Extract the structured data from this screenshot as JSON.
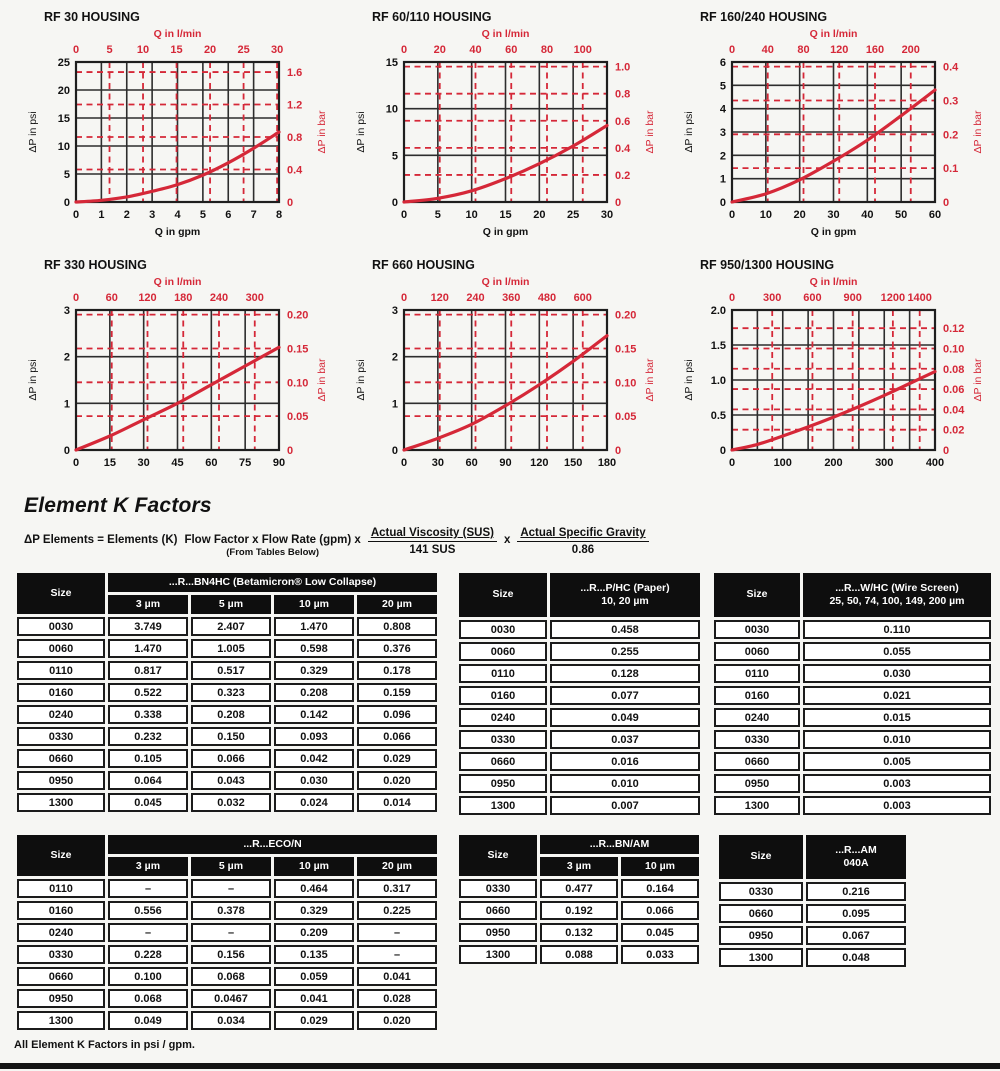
{
  "page": {
    "section_title": "Element K Factors",
    "formula": {
      "lhs": "ΔP Elements = Elements (K)",
      "mid": "Flow Factor x Flow Rate (gpm) x",
      "mid_note": "(From Tables Below)",
      "frac1_num": "Actual Viscosity (SUS)",
      "frac1_den": "141 SUS",
      "times": "x",
      "frac2_num": "Actual Specific Gravity",
      "frac2_den": "0.86"
    },
    "footnote": "All Element K Factors in psi / gpm."
  },
  "colors": {
    "accent_red": "#d52838",
    "line_black": "#2d2d2d",
    "header_bg": "#0e0e0e",
    "cell_bg": "#ffffff"
  },
  "chart_data": [
    {
      "type": "line",
      "title": "RF 30 HOUSING",
      "top_axis_label": "Q in l/min",
      "bottom_axis_label": "Q in gpm",
      "left_axis_label": "ΔP in psi",
      "right_axis_label": "ΔP in bar",
      "xlim": [
        0,
        8
      ],
      "ylim": [
        0,
        25
      ],
      "x_grid": [
        0,
        1,
        2,
        3,
        4,
        5,
        6,
        7,
        8
      ],
      "y_grid": [
        0,
        5,
        10,
        15,
        20,
        25
      ],
      "x_labels": [
        "0",
        "1",
        "2",
        "3",
        "4",
        "5",
        "6",
        "7",
        "8"
      ],
      "y_labels": [
        "0",
        "5",
        "10",
        "15",
        "20",
        "25"
      ],
      "top_lmin_labels": [
        "0",
        "5",
        "10",
        "15",
        "20",
        "25",
        "30"
      ],
      "right_bar_labels": [
        "0",
        "0.4",
        "0.8",
        "1.2",
        "1.6"
      ],
      "curve": {
        "x": [
          0,
          1,
          2,
          3,
          4,
          5,
          6,
          7,
          8
        ],
        "y": [
          0,
          0.3,
          0.9,
          1.9,
          3.1,
          4.8,
          7.0,
          9.6,
          12.5
        ]
      }
    },
    {
      "type": "line",
      "title": "RF 60/110 HOUSING",
      "top_axis_label": "Q in l/min",
      "bottom_axis_label": "Q in gpm",
      "left_axis_label": "ΔP in psi",
      "right_axis_label": "ΔP in bar",
      "xlim": [
        0,
        30
      ],
      "ylim": [
        0,
        15
      ],
      "x_grid": [
        0,
        5,
        10,
        15,
        20,
        25,
        30
      ],
      "y_grid": [
        0,
        5,
        10,
        15
      ],
      "x_labels": [
        "0",
        "5",
        "10",
        "15",
        "20",
        "25",
        "30"
      ],
      "y_labels": [
        "0",
        "5",
        "10",
        "15"
      ],
      "top_lmin_labels": [
        "0",
        "20",
        "40",
        "60",
        "80",
        "100"
      ],
      "right_bar_labels": [
        "0",
        "0.2",
        "0.4",
        "0.6",
        "0.8",
        "1.0"
      ],
      "curve": {
        "x": [
          0,
          5,
          10,
          15,
          20,
          25,
          30
        ],
        "y": [
          0,
          0.4,
          1.2,
          2.5,
          4.1,
          6.0,
          8.2
        ]
      }
    },
    {
      "type": "line",
      "title": "RF 160/240 HOUSING",
      "top_axis_label": "Q in l/min",
      "bottom_axis_label": "Q in gpm",
      "left_axis_label": "ΔP in psi",
      "right_axis_label": "ΔP in bar",
      "xlim": [
        0,
        60
      ],
      "ylim": [
        0,
        6
      ],
      "x_grid": [
        0,
        10,
        20,
        30,
        40,
        50,
        60
      ],
      "y_grid": [
        0,
        1,
        2,
        3,
        4,
        5,
        6
      ],
      "x_labels": [
        "0",
        "10",
        "20",
        "30",
        "40",
        "50",
        "60"
      ],
      "y_labels": [
        "0",
        "1",
        "2",
        "3",
        "4",
        "5",
        "6"
      ],
      "top_lmin_labels": [
        "0",
        "40",
        "80",
        "120",
        "160",
        "200"
      ],
      "right_bar_labels": [
        "0",
        "0.1",
        "0.2",
        "0.3",
        "0.4"
      ],
      "curve": {
        "x": [
          0,
          10,
          20,
          30,
          40,
          50,
          60
        ],
        "y": [
          0,
          0.35,
          0.95,
          1.75,
          2.65,
          3.7,
          4.8
        ]
      }
    },
    {
      "type": "line",
      "title": "RF 330 HOUSING",
      "top_axis_label": "Q in l/min",
      "bottom_axis_label": "",
      "left_axis_label": "ΔP in psi",
      "right_axis_label": "ΔP in bar",
      "xlim": [
        0,
        90
      ],
      "ylim": [
        0,
        3
      ],
      "x_grid": [
        0,
        15,
        30,
        45,
        60,
        75,
        90
      ],
      "y_grid": [
        0,
        1,
        2,
        3
      ],
      "x_labels": [
        "0",
        "15",
        "30",
        "45",
        "60",
        "75",
        "90"
      ],
      "y_labels": [
        "0",
        "1",
        "2",
        "3"
      ],
      "top_lmin_labels": [
        "0",
        "60",
        "120",
        "180",
        "240",
        "300"
      ],
      "right_bar_labels": [
        "0",
        "0.05",
        "0.10",
        "0.15",
        "0.20"
      ],
      "curve": {
        "x": [
          0,
          15,
          30,
          45,
          60,
          75,
          90
        ],
        "y": [
          0,
          0.3,
          0.65,
          1.0,
          1.4,
          1.8,
          2.2
        ]
      }
    },
    {
      "type": "line",
      "title": "RF 660 HOUSING",
      "top_axis_label": "Q in l/min",
      "bottom_axis_label": "",
      "left_axis_label": "ΔP in psi",
      "right_axis_label": "ΔP in bar",
      "xlim": [
        0,
        180
      ],
      "ylim": [
        0,
        3
      ],
      "x_grid": [
        0,
        30,
        60,
        90,
        120,
        150,
        180
      ],
      "y_grid": [
        0,
        1,
        2,
        3
      ],
      "x_labels": [
        "0",
        "30",
        "60",
        "90",
        "120",
        "150",
        "180"
      ],
      "y_labels": [
        "0",
        "1",
        "2",
        "3"
      ],
      "top_lmin_labels": [
        "0",
        "120",
        "240",
        "360",
        "480",
        "600"
      ],
      "right_bar_labels": [
        "0",
        "0.05",
        "0.10",
        "0.15",
        "0.20"
      ],
      "curve": {
        "x": [
          0,
          30,
          60,
          90,
          120,
          150,
          180
        ],
        "y": [
          0,
          0.25,
          0.55,
          0.95,
          1.4,
          1.9,
          2.45
        ]
      }
    },
    {
      "type": "line",
      "title": "RF 950/1300 HOUSING",
      "top_axis_label": "Q in l/min",
      "bottom_axis_label": "",
      "left_axis_label": "ΔP in psi",
      "right_axis_label": "ΔP in bar",
      "xlim": [
        0,
        400
      ],
      "ylim": [
        0,
        2
      ],
      "x_grid": [
        0,
        50,
        100,
        150,
        200,
        250,
        300,
        350,
        400
      ],
      "y_grid": [
        0,
        0.5,
        1,
        1.5,
        2
      ],
      "x_labels": [
        "0",
        "100",
        "200",
        "300",
        "400"
      ],
      "y_labels": [
        "0",
        "0.5",
        "1.0",
        "1.5",
        "2.0"
      ],
      "top_lmin_labels": [
        "0",
        "300",
        "600",
        "900",
        "1200",
        "1400"
      ],
      "right_bar_labels": [
        "0",
        "0.02",
        "0.04",
        "0.06",
        "0.08",
        "0.10",
        "0.12"
      ],
      "curve": {
        "x": [
          0,
          50,
          100,
          150,
          200,
          250,
          300,
          350,
          400
        ],
        "y": [
          0,
          0.08,
          0.2,
          0.33,
          0.47,
          0.62,
          0.78,
          0.95,
          1.12
        ]
      }
    }
  ],
  "tables": [
    {
      "size_header": "Size",
      "group_header": "...R...BN4HC (Betamicron® Low Collapse)",
      "sub_headers": [
        "3 µm",
        "5 µm",
        "10 µm",
        "20 µm"
      ],
      "rows": [
        [
          "0030",
          "3.749",
          "2.407",
          "1.470",
          "0.808"
        ],
        [
          "0060",
          "1.470",
          "1.005",
          "0.598",
          "0.376"
        ],
        [
          "0110",
          "0.817",
          "0.517",
          "0.329",
          "0.178"
        ],
        [
          "0160",
          "0.522",
          "0.323",
          "0.208",
          "0.159"
        ],
        [
          "0240",
          "0.338",
          "0.208",
          "0.142",
          "0.096"
        ],
        [
          "0330",
          "0.232",
          "0.150",
          "0.093",
          "0.066"
        ],
        [
          "0660",
          "0.105",
          "0.066",
          "0.042",
          "0.029"
        ],
        [
          "0950",
          "0.064",
          "0.043",
          "0.030",
          "0.020"
        ],
        [
          "1300",
          "0.045",
          "0.032",
          "0.024",
          "0.014"
        ]
      ]
    },
    {
      "size_header": "Size",
      "group_header": "...R...P/HC (Paper)",
      "group_sub": "10, 20 µm",
      "rows": [
        [
          "0030",
          "0.458"
        ],
        [
          "0060",
          "0.255"
        ],
        [
          "0110",
          "0.128"
        ],
        [
          "0160",
          "0.077"
        ],
        [
          "0240",
          "0.049"
        ],
        [
          "0330",
          "0.037"
        ],
        [
          "0660",
          "0.016"
        ],
        [
          "0950",
          "0.010"
        ],
        [
          "1300",
          "0.007"
        ]
      ]
    },
    {
      "size_header": "Size",
      "group_header": "...R...W/HC (Wire Screen)",
      "group_sub": "25, 50, 74, 100, 149, 200 µm",
      "rows": [
        [
          "0030",
          "0.110"
        ],
        [
          "0060",
          "0.055"
        ],
        [
          "0110",
          "0.030"
        ],
        [
          "0160",
          "0.021"
        ],
        [
          "0240",
          "0.015"
        ],
        [
          "0330",
          "0.010"
        ],
        [
          "0660",
          "0.005"
        ],
        [
          "0950",
          "0.003"
        ],
        [
          "1300",
          "0.003"
        ]
      ]
    },
    {
      "size_header": "Size",
      "group_header": "...R...ECO/N",
      "sub_headers": [
        "3 µm",
        "5 µm",
        "10 µm",
        "20 µm"
      ],
      "rows": [
        [
          "0110",
          "–",
          "–",
          "0.464",
          "0.317"
        ],
        [
          "0160",
          "0.556",
          "0.378",
          "0.329",
          "0.225"
        ],
        [
          "0240",
          "–",
          "–",
          "0.209",
          "–"
        ],
        [
          "0330",
          "0.228",
          "0.156",
          "0.135",
          "–"
        ],
        [
          "0660",
          "0.100",
          "0.068",
          "0.059",
          "0.041"
        ],
        [
          "0950",
          "0.068",
          "0.0467",
          "0.041",
          "0.028"
        ],
        [
          "1300",
          "0.049",
          "0.034",
          "0.029",
          "0.020"
        ]
      ]
    },
    {
      "size_header": "Size",
      "group_header": "...R...BN/AM",
      "sub_headers": [
        "3 µm",
        "10 µm"
      ],
      "rows": [
        [
          "0330",
          "0.477",
          "0.164"
        ],
        [
          "0660",
          "0.192",
          "0.066"
        ],
        [
          "0950",
          "0.132",
          "0.045"
        ],
        [
          "1300",
          "0.088",
          "0.033"
        ]
      ]
    },
    {
      "size_header": "Size",
      "group_header": "...R...AM",
      "group_sub": "040A",
      "rows": [
        [
          "0330",
          "0.216"
        ],
        [
          "0660",
          "0.095"
        ],
        [
          "0950",
          "0.067"
        ],
        [
          "1300",
          "0.048"
        ]
      ]
    }
  ]
}
